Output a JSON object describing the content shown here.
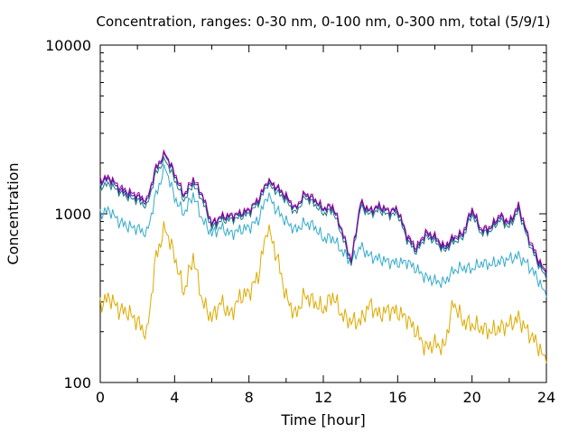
{
  "chart_data": {
    "type": "line",
    "title": "Concentration, ranges: 0-30 nm, 0-100 nm, 0-300 nm, total (5/9/1)",
    "xlabel": "Time [hour]",
    "ylabel": "Concentration",
    "xlim": [
      0,
      24
    ],
    "ylim": [
      100,
      10000
    ],
    "yscale": "log",
    "grid": false,
    "legend": "none",
    "x_ticks": [
      "0",
      "4",
      "8",
      "12",
      "16",
      "20",
      "24"
    ],
    "y_ticks": [
      "100",
      "1000",
      "10000"
    ],
    "x": [
      0,
      0.5,
      1,
      1.5,
      2,
      2.5,
      3,
      3.5,
      4,
      4.5,
      5,
      5.5,
      6,
      6.5,
      7,
      7.5,
      8,
      8.5,
      9,
      9.5,
      10,
      10.5,
      11,
      11.5,
      12,
      12.5,
      13,
      13.5,
      14,
      14.5,
      15,
      15.5,
      16,
      16.5,
      17,
      17.5,
      18,
      18.5,
      19,
      19.5,
      20,
      20.5,
      21,
      21.5,
      22,
      22.5,
      23,
      23.5,
      24
    ],
    "series": [
      {
        "color": "#ddaa00",
        "values": [
          290,
          320,
          270,
          260,
          230,
          190,
          560,
          830,
          560,
          340,
          560,
          300,
          240,
          300,
          250,
          320,
          340,
          430,
          840,
          560,
          320,
          250,
          330,
          300,
          270,
          330,
          250,
          230,
          230,
          290,
          250,
          270,
          260,
          240,
          200,
          160,
          170,
          160,
          300,
          230,
          220,
          210,
          200,
          210,
          220,
          240,
          200,
          170,
          130
        ]
      },
      {
        "color": "#33aacc",
        "values": [
          1000,
          1050,
          900,
          840,
          820,
          760,
          1300,
          1900,
          1250,
          1000,
          1300,
          920,
          760,
          830,
          760,
          800,
          830,
          920,
          1300,
          1050,
          900,
          800,
          880,
          850,
          710,
          720,
          600,
          520,
          640,
          560,
          540,
          520,
          510,
          520,
          470,
          420,
          400,
          390,
          460,
          480,
          470,
          510,
          500,
          520,
          540,
          560,
          500,
          420,
          320
        ]
      },
      {
        "color": "#1a7a7a",
        "values": [
          1450,
          1500,
          1350,
          1250,
          1200,
          1100,
          1750,
          2100,
          1600,
          1200,
          1500,
          1200,
          820,
          910,
          920,
          950,
          1000,
          1150,
          1500,
          1350,
          1200,
          1000,
          1250,
          1150,
          1000,
          1050,
          750,
          500,
          1100,
          990,
          1050,
          980,
          1000,
          700,
          590,
          730,
          690,
          600,
          680,
          720,
          1000,
          760,
          790,
          920,
          830,
          1050,
          700,
          520,
          410
        ]
      },
      {
        "color": "#2222aa",
        "values": [
          1550,
          1600,
          1400,
          1300,
          1260,
          1160,
          1850,
          2250,
          1700,
          1270,
          1580,
          1270,
          860,
          950,
          960,
          990,
          1040,
          1200,
          1550,
          1420,
          1250,
          1060,
          1300,
          1210,
          1060,
          1100,
          790,
          520,
          1150,
          1030,
          1100,
          1030,
          1050,
          730,
          610,
          760,
          720,
          620,
          710,
          750,
          1050,
          790,
          820,
          960,
          870,
          1100,
          730,
          540,
          430
        ]
      },
      {
        "color": "#990099",
        "values": [
          1600,
          1650,
          1450,
          1350,
          1300,
          1200,
          1900,
          2300,
          1750,
          1300,
          1620,
          1300,
          880,
          970,
          980,
          1010,
          1060,
          1220,
          1580,
          1450,
          1280,
          1080,
          1330,
          1240,
          1080,
          1120,
          810,
          530,
          1180,
          1050,
          1120,
          1050,
          1070,
          750,
          630,
          780,
          740,
          640,
          730,
          770,
          1080,
          810,
          840,
          990,
          890,
          1130,
          750,
          560,
          440
        ]
      }
    ]
  }
}
